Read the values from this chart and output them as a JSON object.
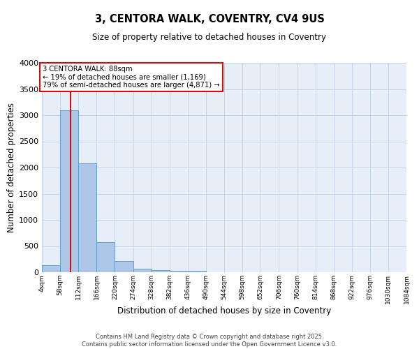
{
  "title": "3, CENTORA WALK, COVENTRY, CV4 9US",
  "subtitle": "Size of property relative to detached houses in Coventry",
  "xlabel": "Distribution of detached houses by size in Coventry",
  "ylabel": "Number of detached properties",
  "footer_line1": "Contains HM Land Registry data © Crown copyright and database right 2025.",
  "footer_line2": "Contains public sector information licensed under the Open Government Licence v3.0.",
  "annotation_line1": "3 CENTORA WALK: 88sqm",
  "annotation_line2": "← 19% of detached houses are smaller (1,169)",
  "annotation_line3": "79% of semi-detached houses are larger (4,871) →",
  "bar_color": "#aec6e8",
  "bar_edge_color": "#5599cc",
  "grid_color": "#c8d4e8",
  "background_color": "#e8eef8",
  "red_line_color": "#cc1111",
  "annotation_box_color": "#cc1111",
  "bin_edges": [
    4,
    58,
    112,
    166,
    220,
    274,
    328,
    382,
    436,
    490,
    544,
    598,
    652,
    706,
    760,
    814,
    868,
    922,
    976,
    1030,
    1084
  ],
  "bin_labels": [
    "4sqm",
    "58sqm",
    "112sqm",
    "166sqm",
    "220sqm",
    "274sqm",
    "328sqm",
    "382sqm",
    "436sqm",
    "490sqm",
    "544sqm",
    "598sqm",
    "652sqm",
    "706sqm",
    "760sqm",
    "814sqm",
    "868sqm",
    "922sqm",
    "976sqm",
    "1030sqm",
    "1084sqm"
  ],
  "bar_heights": [
    140,
    3100,
    2080,
    575,
    215,
    65,
    35,
    25,
    30,
    0,
    0,
    0,
    0,
    0,
    0,
    0,
    0,
    0,
    0,
    0
  ],
  "ylim": [
    0,
    4000
  ],
  "yticks": [
    0,
    500,
    1000,
    1500,
    2000,
    2500,
    3000,
    3500,
    4000
  ],
  "red_line_x": 88
}
